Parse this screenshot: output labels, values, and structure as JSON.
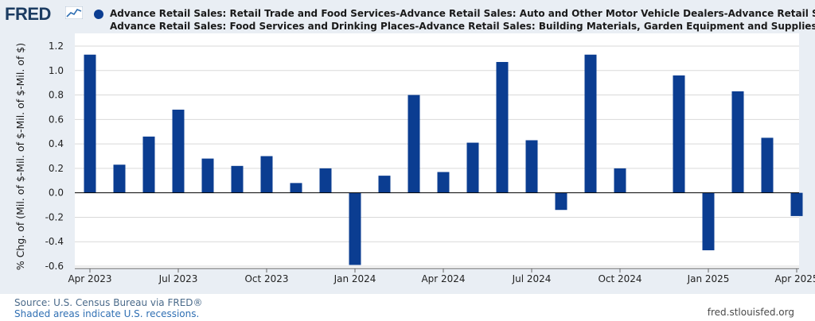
{
  "header": {
    "logo_text": "FRED",
    "legend_line_1": "Advance Retail Sales: Retail Trade and Food Services-Advance Retail Sales: Auto and Other Motor Vehicle Dealers-Advance Retail Sale",
    "legend_line_2": "Advance Retail Sales: Food Services and Drinking Places-Advance Retail Sales: Building Materials, Garden Equipment and Supplies De"
  },
  "footer": {
    "source": "Source: U.S. Census Bureau via FRED®",
    "shaded": "Shaded areas indicate U.S. recessions.",
    "url": "fred.stlouisfed.org"
  },
  "colors": {
    "bar": "#0b3d91",
    "plot_background": "#ffffff",
    "frame_background": "#e9eef4",
    "grid": "#d9d9d9",
    "logo": "#1c3c62"
  },
  "chart_data": {
    "type": "bar",
    "ylabel": "% Chg. of (Mil. of $-Mil. of $-Mil. of $-Mil. of $)",
    "ylim": [
      -0.6,
      1.2
    ],
    "yticks": [
      -0.6,
      -0.4,
      -0.2,
      0.0,
      0.2,
      0.4,
      0.6,
      0.8,
      1.0,
      1.2
    ],
    "grid": true,
    "legend_placement": "top",
    "x_tick_labels": [
      "Apr 2023",
      "Jul 2023",
      "Oct 2023",
      "Jan 2024",
      "Apr 2024",
      "Jul 2024",
      "Oct 2024",
      "Jan 2025",
      "Apr 2025"
    ],
    "x_tick_indices": [
      0,
      3,
      6,
      9,
      12,
      15,
      18,
      21,
      24
    ],
    "categories": [
      "2023-04",
      "2023-05",
      "2023-06",
      "2023-07",
      "2023-08",
      "2023-09",
      "2023-10",
      "2023-11",
      "2023-12",
      "2024-01",
      "2024-02",
      "2024-03",
      "2024-04",
      "2024-05",
      "2024-06",
      "2024-07",
      "2024-08",
      "2024-09",
      "2024-10",
      "2024-11",
      "2024-12",
      "2025-01",
      "2025-02",
      "2025-03",
      "2025-04"
    ],
    "series": [
      {
        "values": [
          1.13,
          0.23,
          0.46,
          0.68,
          0.28,
          0.22,
          0.3,
          0.08,
          0.2,
          -0.59,
          0.14,
          0.8,
          0.17,
          0.41,
          1.07,
          0.43,
          -0.14,
          1.13,
          0.2,
          0.0,
          0.96,
          -0.47,
          0.83,
          0.45,
          -0.19
        ]
      }
    ]
  }
}
